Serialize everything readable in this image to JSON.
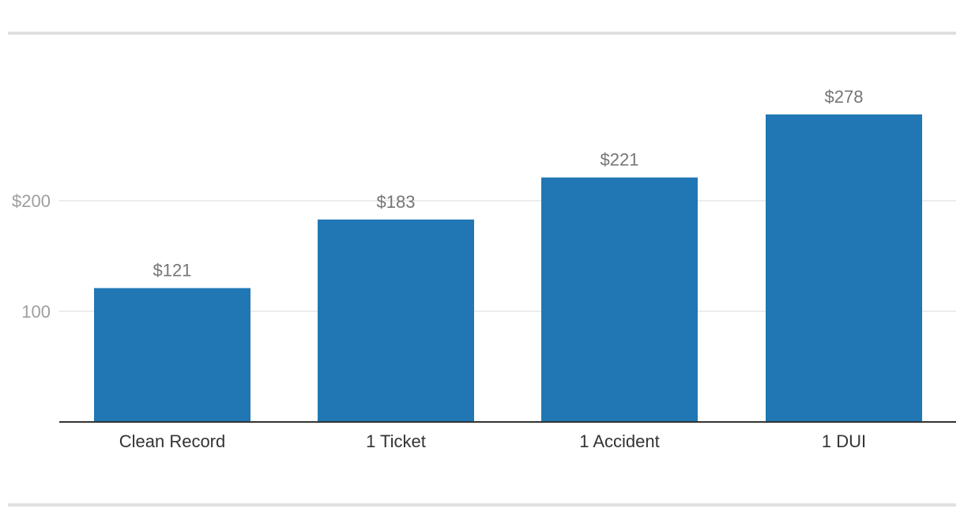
{
  "chart_data": {
    "type": "bar",
    "categories": [
      "Clean Record",
      "1 Ticket",
      "1 Accident",
      "1 DUI"
    ],
    "values": [
      121,
      183,
      221,
      278
    ],
    "value_labels": [
      "$121",
      "$183",
      "$221",
      "$278"
    ],
    "y_ticks": [
      {
        "value": 100,
        "label": "100"
      },
      {
        "value": 200,
        "label": "$200"
      }
    ],
    "ylim": [
      0,
      300
    ],
    "grid": true,
    "colors": {
      "bar": "#2077b4",
      "grid": "#e6e6e6",
      "axis": "#333333"
    }
  }
}
